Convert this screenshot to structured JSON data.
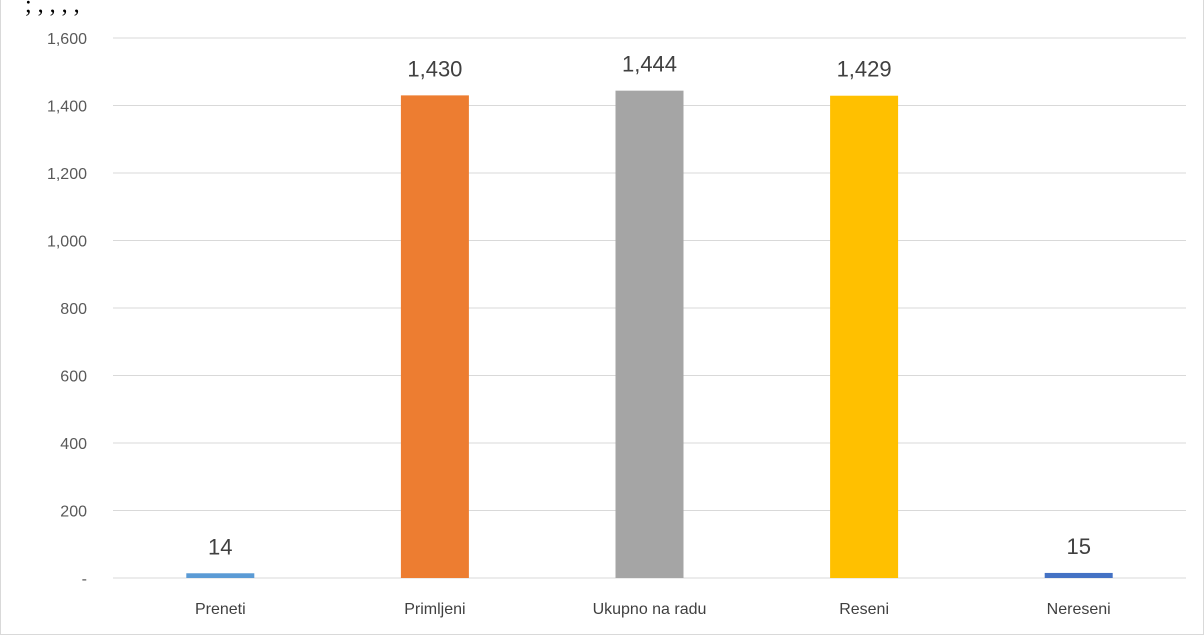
{
  "header_fragment": "; , , , ,",
  "chart_data": {
    "type": "bar",
    "title": "",
    "xlabel": "",
    "ylabel": "",
    "categories": [
      "Preneti",
      "Primljeni",
      "Ukupno na radu",
      "Reseni",
      "Nereseni"
    ],
    "values": [
      14,
      1430,
      1444,
      1429,
      15
    ],
    "value_labels": [
      "14",
      "1,430",
      "1,444",
      "1,429",
      "15"
    ],
    "colors": [
      "#5b9bd5",
      "#ed7d31",
      "#a5a5a5",
      "#ffc000",
      "#4472c4"
    ],
    "ylim": [
      0,
      1600
    ],
    "yticks": [
      0,
      200,
      400,
      600,
      800,
      1000,
      1200,
      1400,
      1600
    ],
    "ytick_labels": [
      "-",
      "200",
      "400",
      "600",
      "800",
      "1,000",
      "1,200",
      "1,400",
      "1,600"
    ],
    "grid": true,
    "legend": "none"
  }
}
